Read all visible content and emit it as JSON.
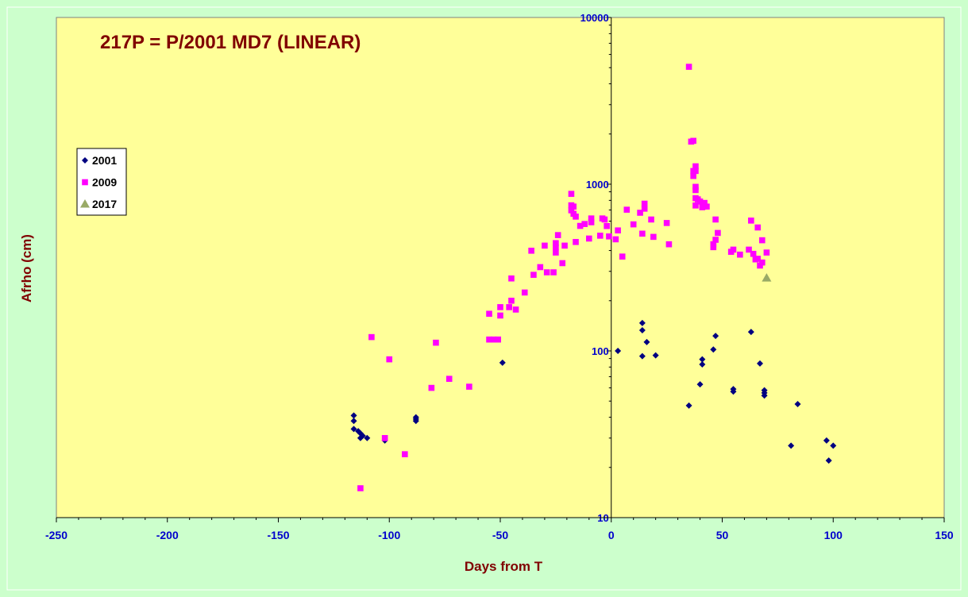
{
  "chart_data": {
    "type": "scatter",
    "title": "217P = P/2001 MD7 (LINEAR)",
    "xlabel": "Days from T",
    "ylabel": "Afrho (cm)",
    "xlim": [
      -250,
      150
    ],
    "x_ticks": [
      -250,
      -200,
      -150,
      -100,
      -50,
      0,
      50,
      100,
      150
    ],
    "ylim": [
      10,
      10000
    ],
    "y_scale": "log",
    "y_ticks": [
      10,
      100,
      1000,
      10000
    ],
    "grid": false,
    "legend_position": "left",
    "plot_background": "#ffff99",
    "page_background": "#ccffcc",
    "series": [
      {
        "name": "2001",
        "marker": "diamond",
        "color": "#000080",
        "points": [
          [
            -116,
            41
          ],
          [
            -116,
            38
          ],
          [
            -116,
            34
          ],
          [
            -114,
            33
          ],
          [
            -113,
            32
          ],
          [
            -113,
            30
          ],
          [
            -112,
            31
          ],
          [
            -110,
            30
          ],
          [
            -102,
            29
          ],
          [
            -88,
            40
          ],
          [
            -88,
            39
          ],
          [
            -88,
            38
          ],
          [
            -49,
            85
          ],
          [
            3,
            100
          ],
          [
            14,
            147
          ],
          [
            14,
            133
          ],
          [
            14,
            93
          ],
          [
            16,
            113
          ],
          [
            20,
            94
          ],
          [
            35,
            47
          ],
          [
            40,
            63
          ],
          [
            41,
            89
          ],
          [
            41,
            83
          ],
          [
            46,
            102
          ],
          [
            47,
            123
          ],
          [
            55,
            59
          ],
          [
            55,
            57
          ],
          [
            63,
            130
          ],
          [
            67,
            84
          ],
          [
            69,
            58
          ],
          [
            69,
            56
          ],
          [
            69,
            54
          ],
          [
            81,
            27
          ],
          [
            84,
            48
          ],
          [
            97,
            29
          ],
          [
            98,
            22
          ],
          [
            100,
            27
          ]
        ]
      },
      {
        "name": "2009",
        "marker": "square",
        "color": "#ff00ff",
        "points": [
          [
            -113,
            15
          ],
          [
            -108,
            121
          ],
          [
            -102,
            30
          ],
          [
            -100,
            89
          ],
          [
            -93,
            24
          ],
          [
            -81,
            60
          ],
          [
            -79,
            112
          ],
          [
            -73,
            68
          ],
          [
            -64,
            61
          ],
          [
            -55,
            167
          ],
          [
            -55,
            117
          ],
          [
            -53,
            117
          ],
          [
            -51,
            117
          ],
          [
            -50,
            183
          ],
          [
            -50,
            163
          ],
          [
            -46,
            183
          ],
          [
            -45,
            272
          ],
          [
            -45,
            200
          ],
          [
            -43,
            177
          ],
          [
            -39,
            224
          ],
          [
            -36,
            399
          ],
          [
            -35,
            286
          ],
          [
            -32,
            318
          ],
          [
            -30,
            428
          ],
          [
            -29,
            296
          ],
          [
            -26,
            296
          ],
          [
            -25,
            443
          ],
          [
            -25,
            418
          ],
          [
            -25,
            389
          ],
          [
            -24,
            495
          ],
          [
            -22,
            336
          ],
          [
            -21,
            428
          ],
          [
            -18,
            875
          ],
          [
            -18,
            747
          ],
          [
            -18,
            697
          ],
          [
            -17,
            734
          ],
          [
            -17,
            664
          ],
          [
            -16,
            639
          ],
          [
            -16,
            450
          ],
          [
            -14,
            562
          ],
          [
            -12,
            577
          ],
          [
            -10,
            472
          ],
          [
            -9,
            623
          ],
          [
            -9,
            591
          ],
          [
            -5,
            491
          ],
          [
            -4,
            623
          ],
          [
            -3,
            614
          ],
          [
            -2,
            561
          ],
          [
            -1,
            486
          ],
          [
            2,
            467
          ],
          [
            3,
            528
          ],
          [
            5,
            368
          ],
          [
            7,
            703
          ],
          [
            10,
            574
          ],
          [
            13,
            674
          ],
          [
            14,
            505
          ],
          [
            15,
            764
          ],
          [
            15,
            713
          ],
          [
            18,
            614
          ],
          [
            19,
            483
          ],
          [
            25,
            585
          ],
          [
            26,
            436
          ],
          [
            35,
            5060
          ],
          [
            36,
            1800
          ],
          [
            37,
            1820
          ],
          [
            37,
            1200
          ],
          [
            37,
            1120
          ],
          [
            38,
            1280
          ],
          [
            38,
            1200
          ],
          [
            38,
            964
          ],
          [
            38,
            922
          ],
          [
            38,
            824
          ],
          [
            38,
            745
          ],
          [
            39,
            811
          ],
          [
            40,
            787
          ],
          [
            41,
            727
          ],
          [
            42,
            772
          ],
          [
            43,
            734
          ],
          [
            46,
            436
          ],
          [
            46,
            419
          ],
          [
            47,
            614
          ],
          [
            47,
            464
          ],
          [
            48,
            510
          ],
          [
            54,
            393
          ],
          [
            55,
            405
          ],
          [
            58,
            378
          ],
          [
            62,
            405
          ],
          [
            63,
            605
          ],
          [
            64,
            382
          ],
          [
            65,
            354
          ],
          [
            66,
            550
          ],
          [
            66,
            357
          ],
          [
            67,
            325
          ],
          [
            68,
            461
          ],
          [
            68,
            339
          ],
          [
            70,
            389
          ]
        ]
      },
      {
        "name": "2017",
        "marker": "triangle",
        "color": "#99aa66",
        "points": [
          [
            70,
            274
          ]
        ]
      }
    ]
  }
}
